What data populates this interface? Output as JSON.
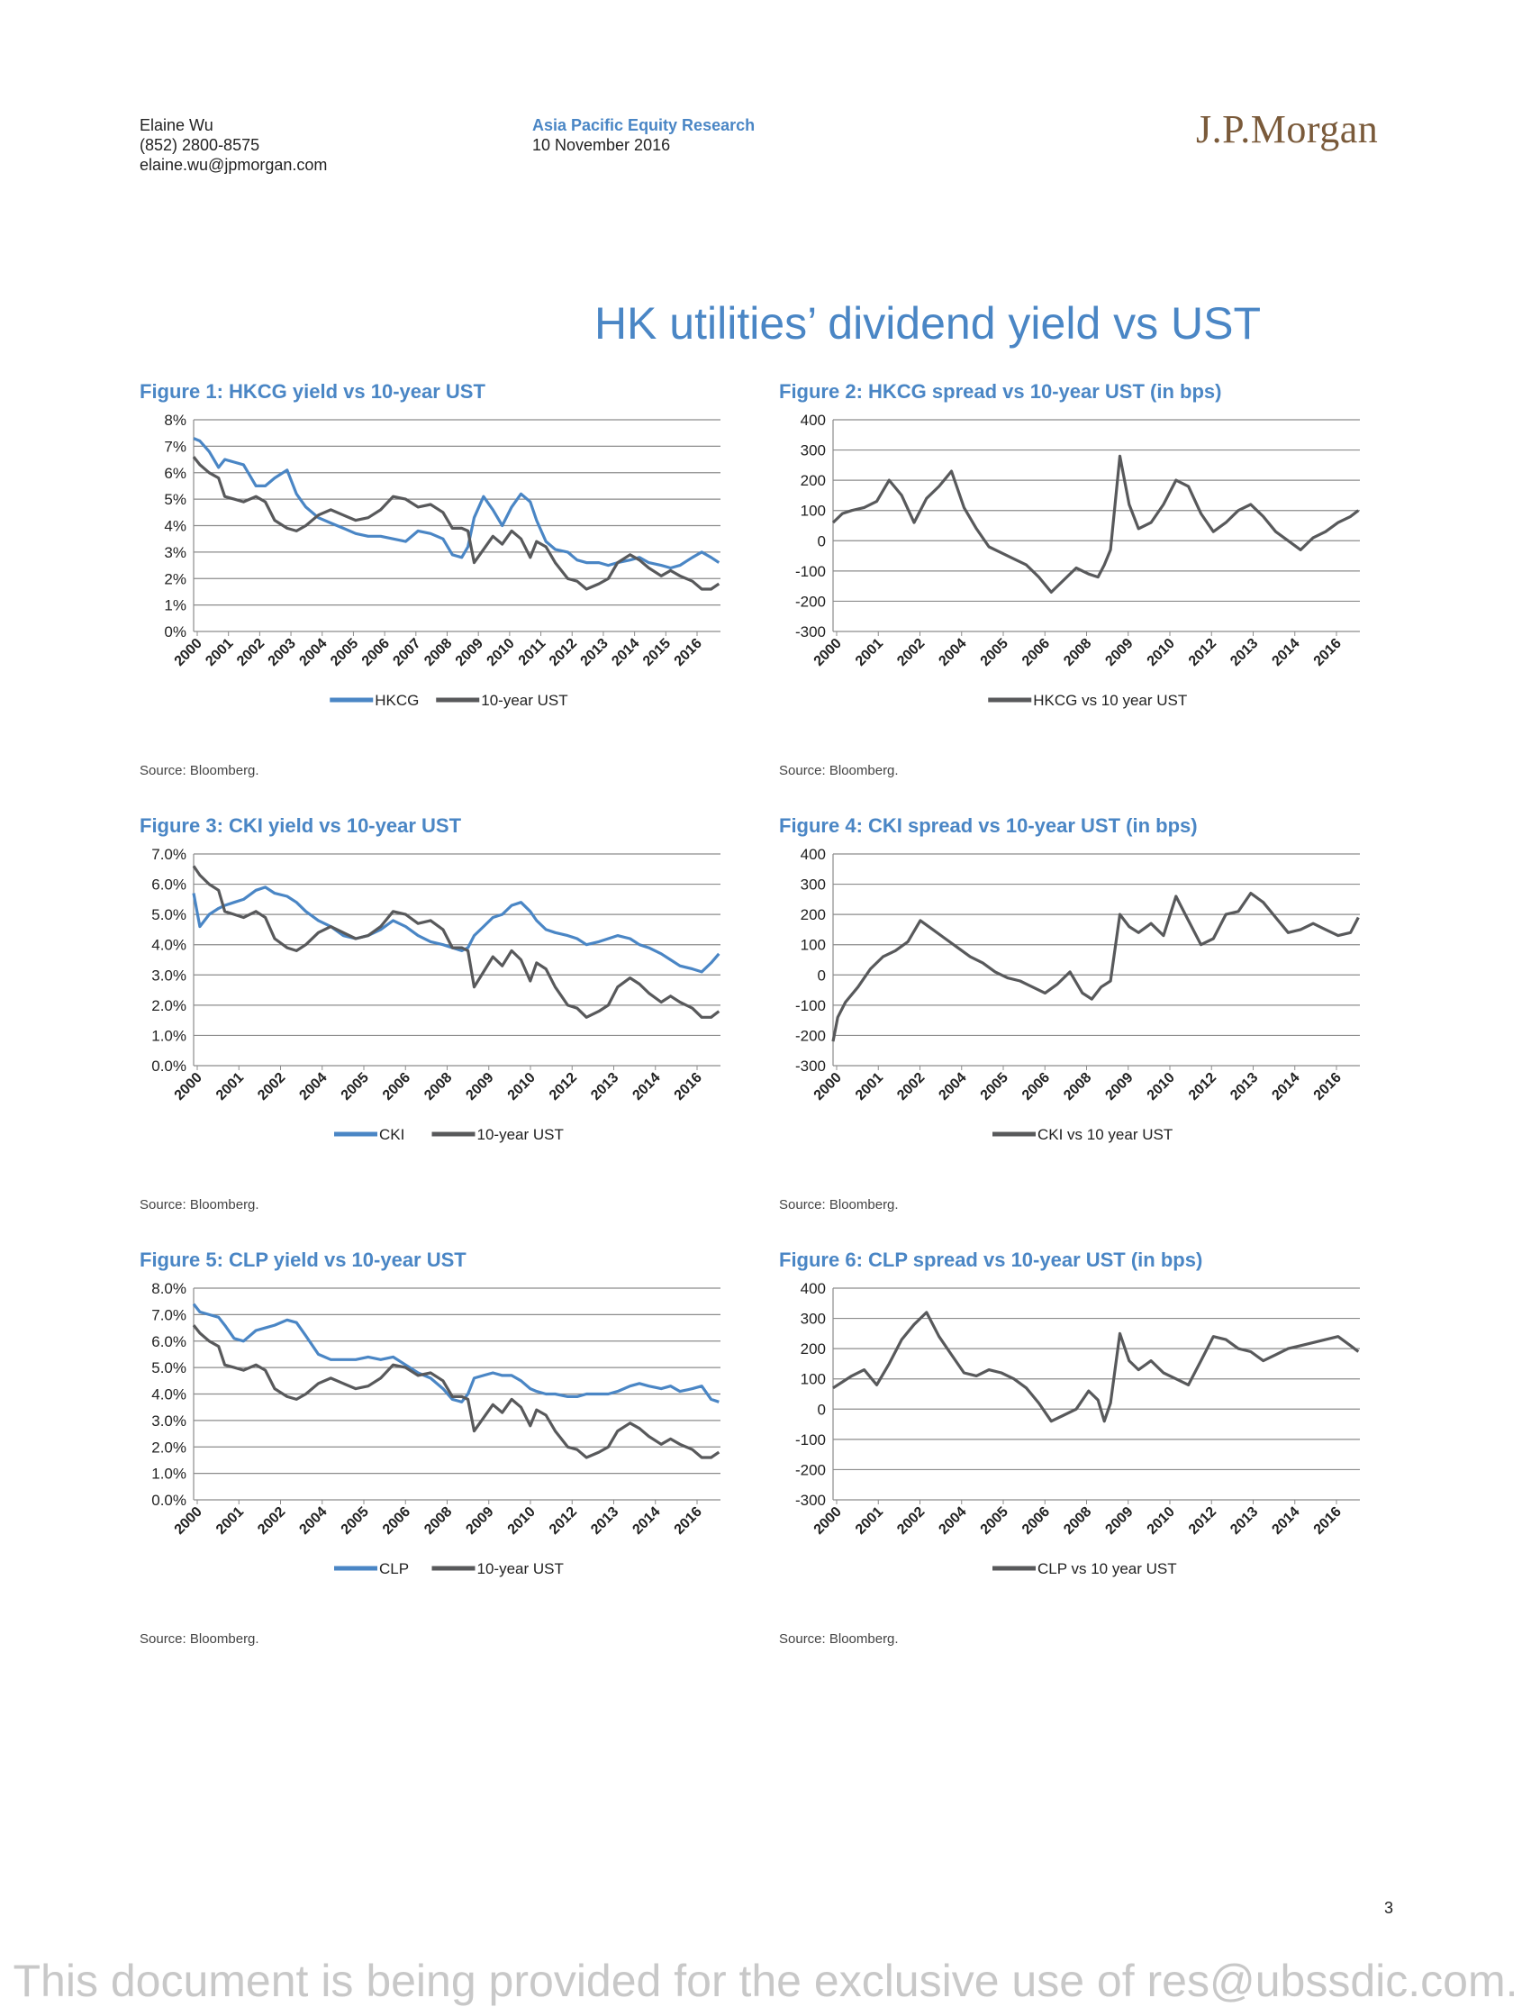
{
  "header": {
    "author": "Elaine Wu",
    "phone": "(852) 2800-8575",
    "email": "elaine.wu@jpmorgan.com",
    "department": "Asia Pacific Equity Research",
    "date": "10 November 2016",
    "logo": "J.P.Morgan"
  },
  "page_title": "HK utilities’ dividend yield vs UST",
  "page_number": "3",
  "footer_notice": "This document is being provided for the exclusive use of res@ubssdic.com.",
  "colors": {
    "blue_series": "#4a86c5",
    "grey_series": "#58595b",
    "title_blue": "#4a86c5"
  },
  "chart_data": [
    {
      "type": "line",
      "title": "Figure 1: HKCG yield vs 10-year UST",
      "source": "Source: Bloomberg.",
      "y_ticks": [
        "8%",
        "7%",
        "6%",
        "5%",
        "4%",
        "3%",
        "2%",
        "1%",
        "0%"
      ],
      "ylim": [
        0,
        8
      ],
      "x_ticks": [
        "2000",
        "2001",
        "2002",
        "2003",
        "2004",
        "2005",
        "2006",
        "2007",
        "2008",
        "2009",
        "2010",
        "2011",
        "2012",
        "2013",
        "2014",
        "2015",
        "2016"
      ],
      "x": [
        2000,
        2000.2,
        2000.5,
        2000.8,
        2001,
        2001.3,
        2001.6,
        2002,
        2002.3,
        2002.6,
        2003,
        2003.3,
        2003.6,
        2004,
        2004.4,
        2004.8,
        2005.2,
        2005.6,
        2006,
        2006.4,
        2006.8,
        2007.2,
        2007.6,
        2008,
        2008.3,
        2008.6,
        2008.8,
        2009,
        2009.3,
        2009.6,
        2009.9,
        2010.2,
        2010.5,
        2010.8,
        2011,
        2011.3,
        2011.6,
        2012,
        2012.3,
        2012.6,
        2013,
        2013.3,
        2013.6,
        2014,
        2014.3,
        2014.6,
        2015,
        2015.3,
        2015.6,
        2016,
        2016.3,
        2016.6,
        2016.85
      ],
      "series": [
        {
          "name": "HKCG",
          "color": "#4a86c5",
          "values": [
            7.3,
            7.2,
            6.8,
            6.2,
            6.5,
            6.4,
            6.3,
            5.5,
            5.5,
            5.8,
            6.1,
            5.2,
            4.7,
            4.3,
            4.1,
            3.9,
            3.7,
            3.6,
            3.6,
            3.5,
            3.4,
            3.8,
            3.7,
            3.5,
            2.9,
            2.8,
            3.2,
            4.3,
            5.1,
            4.6,
            4.0,
            4.7,
            5.2,
            4.9,
            4.2,
            3.4,
            3.1,
            3.0,
            2.7,
            2.6,
            2.6,
            2.5,
            2.6,
            2.7,
            2.8,
            2.6,
            2.5,
            2.4,
            2.5,
            2.8,
            3.0,
            2.8,
            2.6
          ]
        },
        {
          "name": "10-year UST",
          "color": "#58595b",
          "values": [
            6.6,
            6.3,
            6.0,
            5.8,
            5.1,
            5.0,
            4.9,
            5.1,
            4.9,
            4.2,
            3.9,
            3.8,
            4.0,
            4.4,
            4.6,
            4.4,
            4.2,
            4.3,
            4.6,
            5.1,
            5.0,
            4.7,
            4.8,
            4.5,
            3.9,
            3.9,
            3.8,
            2.6,
            3.1,
            3.6,
            3.3,
            3.8,
            3.5,
            2.8,
            3.4,
            3.2,
            2.6,
            2.0,
            1.9,
            1.6,
            1.8,
            2.0,
            2.6,
            2.9,
            2.7,
            2.4,
            2.1,
            2.3,
            2.1,
            1.9,
            1.6,
            1.6,
            1.8
          ]
        }
      ]
    },
    {
      "type": "line",
      "title": "Figure 2: HKCG spread vs 10-year UST (in bps)",
      "source": "Source: Bloomberg.",
      "y_ticks": [
        "400",
        "300",
        "200",
        "100",
        "0",
        "-100",
        "-200",
        "-300"
      ],
      "ylim": [
        -300,
        400
      ],
      "x_ticks": [
        "2000",
        "2001",
        "2002",
        "2004",
        "2005",
        "2006",
        "2008",
        "2009",
        "2010",
        "2012",
        "2013",
        "2014",
        "2016"
      ],
      "x": [
        2000,
        2000.3,
        2000.6,
        2001,
        2001.4,
        2001.8,
        2002.2,
        2002.6,
        2003,
        2003.4,
        2003.8,
        2004.2,
        2004.6,
        2005,
        2005.4,
        2005.8,
        2006.2,
        2006.6,
        2007,
        2007.4,
        2007.8,
        2008.2,
        2008.5,
        2008.7,
        2008.9,
        2009.2,
        2009.5,
        2009.8,
        2010.2,
        2010.6,
        2011,
        2011.4,
        2011.8,
        2012.2,
        2012.6,
        2013,
        2013.4,
        2013.8,
        2014.2,
        2014.6,
        2015,
        2015.4,
        2015.8,
        2016.2,
        2016.6,
        2016.85
      ],
      "series": [
        {
          "name": "HKCG vs 10 year UST",
          "color": "#58595b",
          "values": [
            60,
            90,
            100,
            110,
            130,
            200,
            150,
            60,
            140,
            180,
            230,
            110,
            40,
            -20,
            -40,
            -60,
            -80,
            -120,
            -170,
            -130,
            -90,
            -110,
            -120,
            -80,
            -30,
            280,
            120,
            40,
            60,
            120,
            200,
            180,
            90,
            30,
            60,
            100,
            120,
            80,
            30,
            0,
            -30,
            10,
            30,
            60,
            80,
            100
          ]
        }
      ]
    },
    {
      "type": "line",
      "title": "Figure 3: CKI yield vs 10-year UST",
      "source": "Source: Bloomberg.",
      "y_ticks": [
        "7.0%",
        "6.0%",
        "5.0%",
        "4.0%",
        "3.0%",
        "2.0%",
        "1.0%",
        "0.0%"
      ],
      "ylim": [
        0,
        7
      ],
      "x_ticks": [
        "2000",
        "2001",
        "2002",
        "2004",
        "2005",
        "2006",
        "2008",
        "2009",
        "2010",
        "2012",
        "2013",
        "2014",
        "2016"
      ],
      "x": [
        2000,
        2000.2,
        2000.5,
        2000.8,
        2001,
        2001.3,
        2001.6,
        2002,
        2002.3,
        2002.6,
        2003,
        2003.3,
        2003.6,
        2004,
        2004.4,
        2004.8,
        2005.2,
        2005.6,
        2006,
        2006.4,
        2006.8,
        2007.2,
        2007.6,
        2008,
        2008.3,
        2008.6,
        2008.8,
        2009,
        2009.3,
        2009.6,
        2009.9,
        2010.2,
        2010.5,
        2010.8,
        2011,
        2011.3,
        2011.6,
        2012,
        2012.3,
        2012.6,
        2013,
        2013.3,
        2013.6,
        2014,
        2014.3,
        2014.6,
        2015,
        2015.3,
        2015.6,
        2016,
        2016.3,
        2016.6,
        2016.85
      ],
      "series": [
        {
          "name": "CKI",
          "color": "#4a86c5",
          "values": [
            5.7,
            4.6,
            5.0,
            5.2,
            5.3,
            5.4,
            5.5,
            5.8,
            5.9,
            5.7,
            5.6,
            5.4,
            5.1,
            4.8,
            4.6,
            4.3,
            4.2,
            4.3,
            4.5,
            4.8,
            4.6,
            4.3,
            4.1,
            4.0,
            3.9,
            3.8,
            3.9,
            4.3,
            4.6,
            4.9,
            5.0,
            5.3,
            5.4,
            5.1,
            4.8,
            4.5,
            4.4,
            4.3,
            4.2,
            4.0,
            4.1,
            4.2,
            4.3,
            4.2,
            4.0,
            3.9,
            3.7,
            3.5,
            3.3,
            3.2,
            3.1,
            3.4,
            3.7
          ]
        },
        {
          "name": "10-year UST",
          "color": "#58595b",
          "values": [
            6.6,
            6.3,
            6.0,
            5.8,
            5.1,
            5.0,
            4.9,
            5.1,
            4.9,
            4.2,
            3.9,
            3.8,
            4.0,
            4.4,
            4.6,
            4.4,
            4.2,
            4.3,
            4.6,
            5.1,
            5.0,
            4.7,
            4.8,
            4.5,
            3.9,
            3.9,
            3.8,
            2.6,
            3.1,
            3.6,
            3.3,
            3.8,
            3.5,
            2.8,
            3.4,
            3.2,
            2.6,
            2.0,
            1.9,
            1.6,
            1.8,
            2.0,
            2.6,
            2.9,
            2.7,
            2.4,
            2.1,
            2.3,
            2.1,
            1.9,
            1.6,
            1.6,
            1.8
          ]
        }
      ]
    },
    {
      "type": "line",
      "title": "Figure 4: CKI spread vs 10-year UST (in bps)",
      "source": "Source: Bloomberg.",
      "y_ticks": [
        "400",
        "300",
        "200",
        "100",
        "0",
        "-100",
        "-200",
        "-300"
      ],
      "ylim": [
        -300,
        400
      ],
      "x_ticks": [
        "2000",
        "2001",
        "2002",
        "2004",
        "2005",
        "2006",
        "2008",
        "2009",
        "2010",
        "2012",
        "2013",
        "2014",
        "2016"
      ],
      "x": [
        2000,
        2000.15,
        2000.4,
        2000.8,
        2001.2,
        2001.6,
        2002,
        2002.4,
        2002.8,
        2003.2,
        2003.6,
        2004,
        2004.4,
        2004.8,
        2005.2,
        2005.6,
        2006,
        2006.4,
        2006.8,
        2007.2,
        2007.6,
        2008,
        2008.3,
        2008.6,
        2008.9,
        2009.2,
        2009.5,
        2009.8,
        2010.2,
        2010.6,
        2011,
        2011.4,
        2011.8,
        2012.2,
        2012.6,
        2013,
        2013.4,
        2013.8,
        2014.2,
        2014.6,
        2015,
        2015.4,
        2015.8,
        2016.2,
        2016.6,
        2016.85
      ],
      "series": [
        {
          "name": "CKI vs 10 year UST",
          "color": "#58595b",
          "values": [
            -220,
            -140,
            -90,
            -40,
            20,
            60,
            80,
            110,
            180,
            150,
            120,
            90,
            60,
            40,
            10,
            -10,
            -20,
            -40,
            -60,
            -30,
            10,
            -60,
            -80,
            -40,
            -20,
            200,
            160,
            140,
            170,
            130,
            260,
            180,
            100,
            120,
            200,
            210,
            270,
            240,
            190,
            140,
            150,
            170,
            150,
            130,
            140,
            190
          ]
        }
      ]
    },
    {
      "type": "line",
      "title": "Figure 5: CLP yield vs 10-year UST",
      "source": "Source: Bloomberg.",
      "y_ticks": [
        "8.0%",
        "7.0%",
        "6.0%",
        "5.0%",
        "4.0%",
        "3.0%",
        "2.0%",
        "1.0%",
        "0.0%"
      ],
      "ylim": [
        0,
        8
      ],
      "x_ticks": [
        "2000",
        "2001",
        "2002",
        "2004",
        "2005",
        "2006",
        "2008",
        "2009",
        "2010",
        "2012",
        "2013",
        "2014",
        "2016"
      ],
      "x": [
        2000,
        2000.2,
        2000.5,
        2000.8,
        2001,
        2001.3,
        2001.6,
        2002,
        2002.3,
        2002.6,
        2003,
        2003.3,
        2003.6,
        2004,
        2004.4,
        2004.8,
        2005.2,
        2005.6,
        2006,
        2006.4,
        2006.8,
        2007.2,
        2007.6,
        2008,
        2008.3,
        2008.6,
        2008.8,
        2009,
        2009.3,
        2009.6,
        2009.9,
        2010.2,
        2010.5,
        2010.8,
        2011,
        2011.3,
        2011.6,
        2012,
        2012.3,
        2012.6,
        2013,
        2013.3,
        2013.6,
        2014,
        2014.3,
        2014.6,
        2015,
        2015.3,
        2015.6,
        2016,
        2016.3,
        2016.6,
        2016.85
      ],
      "series": [
        {
          "name": "CLP",
          "color": "#4a86c5",
          "values": [
            7.4,
            7.1,
            7.0,
            6.9,
            6.6,
            6.1,
            6.0,
            6.4,
            6.5,
            6.6,
            6.8,
            6.7,
            6.2,
            5.5,
            5.3,
            5.3,
            5.3,
            5.4,
            5.3,
            5.4,
            5.1,
            4.8,
            4.6,
            4.2,
            3.8,
            3.7,
            4.0,
            4.6,
            4.7,
            4.8,
            4.7,
            4.7,
            4.5,
            4.2,
            4.1,
            4.0,
            4.0,
            3.9,
            3.9,
            4.0,
            4.0,
            4.0,
            4.1,
            4.3,
            4.4,
            4.3,
            4.2,
            4.3,
            4.1,
            4.2,
            4.3,
            3.8,
            3.7
          ]
        },
        {
          "name": "10-year UST",
          "color": "#58595b",
          "values": [
            6.6,
            6.3,
            6.0,
            5.8,
            5.1,
            5.0,
            4.9,
            5.1,
            4.9,
            4.2,
            3.9,
            3.8,
            4.0,
            4.4,
            4.6,
            4.4,
            4.2,
            4.3,
            4.6,
            5.1,
            5.0,
            4.7,
            4.8,
            4.5,
            3.9,
            3.9,
            3.8,
            2.6,
            3.1,
            3.6,
            3.3,
            3.8,
            3.5,
            2.8,
            3.4,
            3.2,
            2.6,
            2.0,
            1.9,
            1.6,
            1.8,
            2.0,
            2.6,
            2.9,
            2.7,
            2.4,
            2.1,
            2.3,
            2.1,
            1.9,
            1.6,
            1.6,
            1.8
          ]
        }
      ]
    },
    {
      "type": "line",
      "title": "Figure 6: CLP spread vs 10-year UST (in bps)",
      "source": "Source: Bloomberg.",
      "y_ticks": [
        "400",
        "300",
        "200",
        "100",
        "0",
        "-100",
        "-200",
        "-300"
      ],
      "ylim": [
        -300,
        400
      ],
      "x_ticks": [
        "2000",
        "2001",
        "2002",
        "2004",
        "2005",
        "2006",
        "2008",
        "2009",
        "2010",
        "2012",
        "2013",
        "2014",
        "2016"
      ],
      "x": [
        2000,
        2000.3,
        2000.6,
        2001,
        2001.4,
        2001.8,
        2002.2,
        2002.6,
        2003,
        2003.4,
        2003.8,
        2004.2,
        2004.6,
        2005,
        2005.4,
        2005.8,
        2006.2,
        2006.6,
        2007,
        2007.4,
        2007.8,
        2008.2,
        2008.5,
        2008.7,
        2008.9,
        2009.2,
        2009.5,
        2009.8,
        2010.2,
        2010.6,
        2011,
        2011.4,
        2011.8,
        2012.2,
        2012.6,
        2013,
        2013.4,
        2013.8,
        2014.2,
        2014.6,
        2015,
        2015.4,
        2015.8,
        2016.2,
        2016.6,
        2016.85
      ],
      "series": [
        {
          "name": "CLP vs 10 year UST",
          "color": "#58595b",
          "values": [
            70,
            90,
            110,
            130,
            80,
            150,
            230,
            280,
            320,
            240,
            180,
            120,
            110,
            130,
            120,
            100,
            70,
            20,
            -40,
            -20,
            0,
            60,
            30,
            -40,
            20,
            250,
            160,
            130,
            160,
            120,
            100,
            80,
            160,
            240,
            230,
            200,
            190,
            160,
            180,
            200,
            210,
            220,
            230,
            240,
            210,
            190
          ]
        }
      ]
    }
  ]
}
